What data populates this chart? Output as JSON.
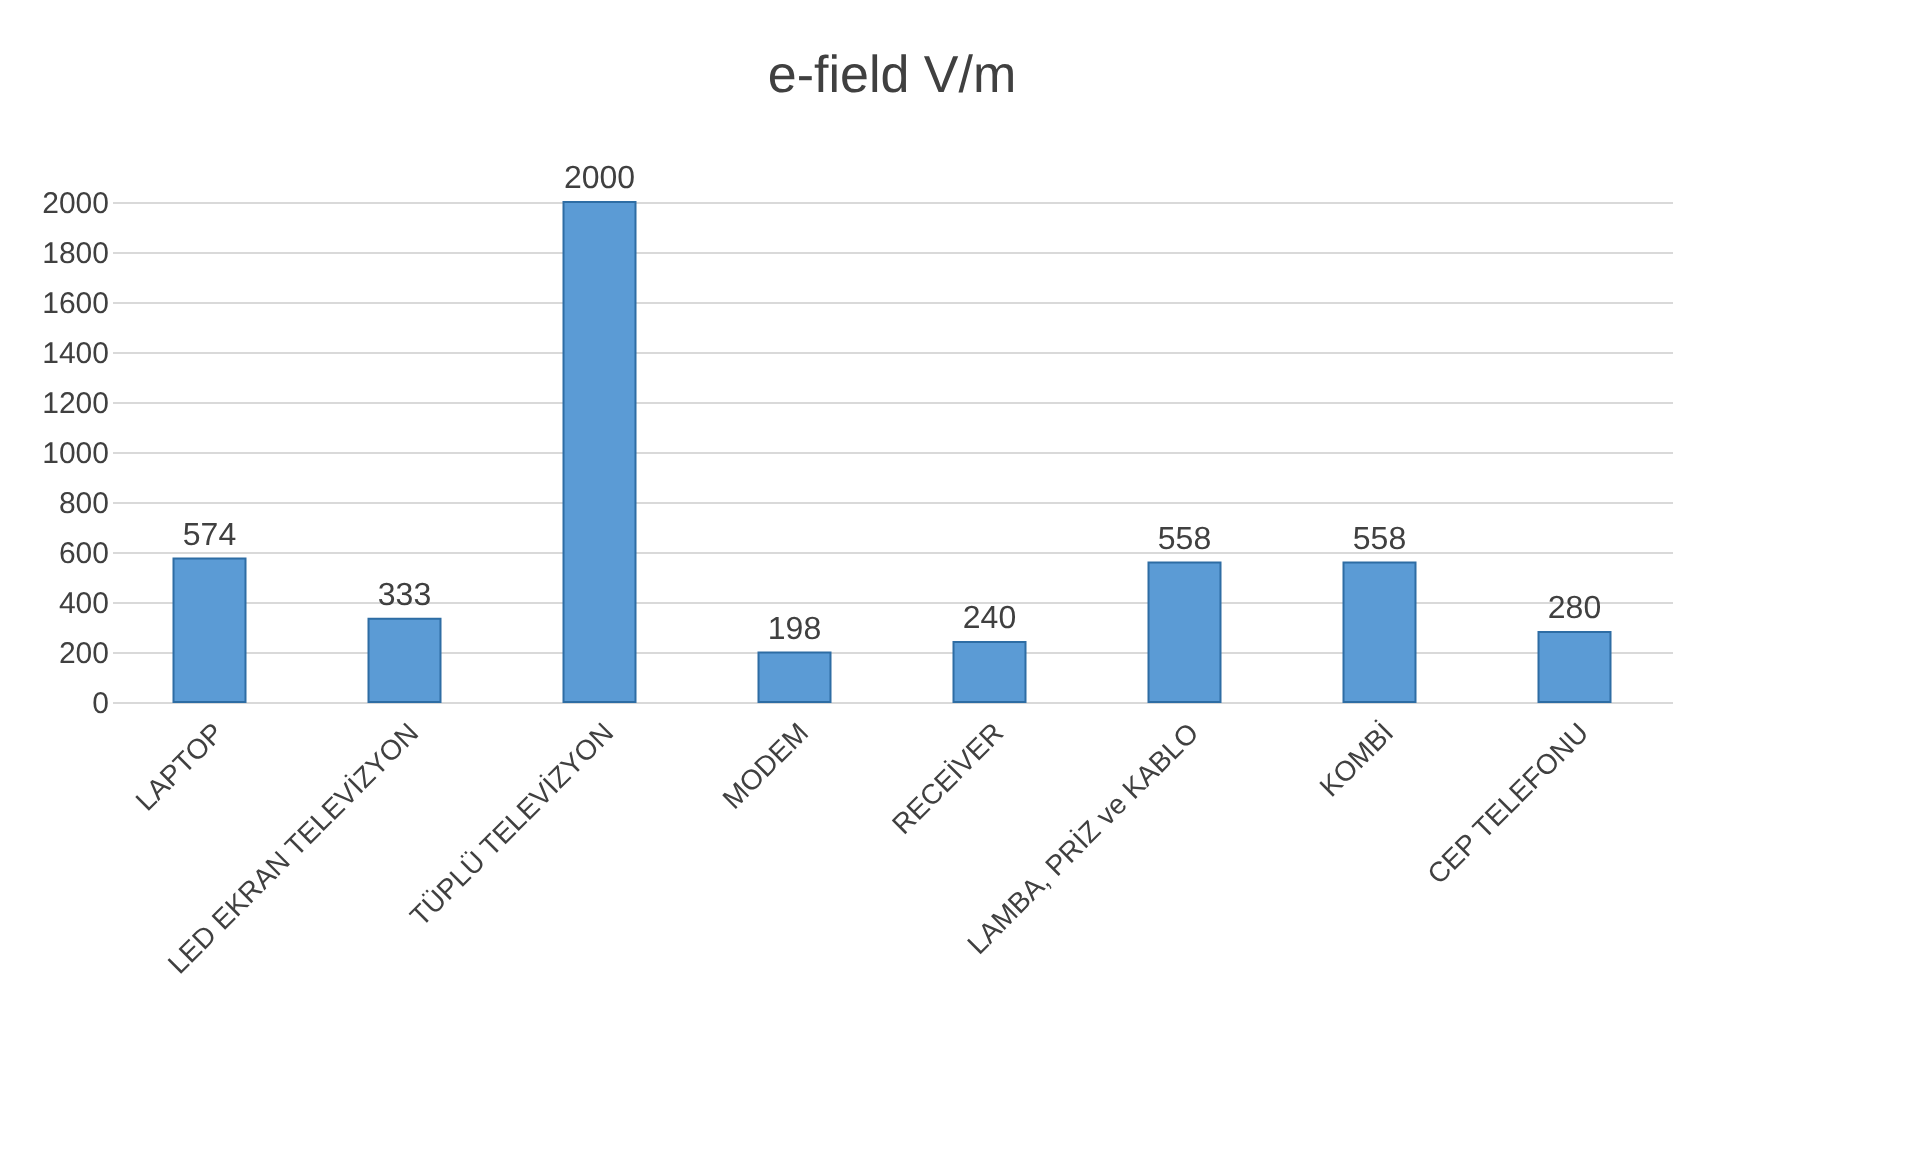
{
  "chart_data": {
    "type": "bar",
    "title": "e-field V/m",
    "categories": [
      "LAPTOP",
      "LED EKRAN TELEVİZYON",
      "TÜPLÜ TELEVİZYON",
      "MODEM",
      "RECEİVER",
      "LAMBA, PRİZ ve KABLO",
      "KOMBİ",
      "CEP TELEFONU"
    ],
    "values": [
      574,
      333,
      2000,
      198,
      240,
      558,
      558,
      280
    ],
    "color": "#5b9bd5",
    "ylim": [
      0,
      2000
    ],
    "yticks": [
      0,
      200,
      400,
      600,
      800,
      1000,
      1200,
      1400,
      1600,
      1800,
      2000
    ],
    "grid": "y",
    "data_labels": true
  }
}
